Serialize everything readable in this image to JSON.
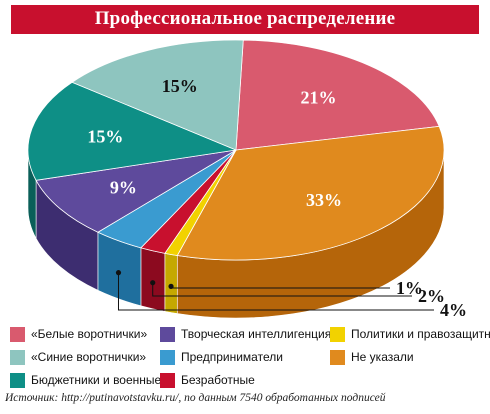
{
  "chart_data": {
    "type": "pie",
    "title": "Профессиональное распределение",
    "series": [
      {
        "name": "«Белые воротнички»",
        "value": 21,
        "label": "21%",
        "color": "#d95a6e",
        "side": "#b0384c"
      },
      {
        "name": "Не указали",
        "value": 33,
        "label": "33%",
        "color": "#e08a1e",
        "side": "#b5650a"
      },
      {
        "name": "Политики и правозащитники",
        "value": 1,
        "label": "1%",
        "color": "#f2d200",
        "side": "#c5a800"
      },
      {
        "name": "Безработные",
        "value": 2,
        "label": "2%",
        "color": "#c8102e",
        "side": "#8c0a1f"
      },
      {
        "name": "Предприниматели",
        "value": 4,
        "label": "4%",
        "color": "#3a9bd0",
        "side": "#1f6f9e"
      },
      {
        "name": "Творческая интеллигенция",
        "value": 9,
        "label": "9%",
        "color": "#5e4a9c",
        "side": "#3d2d70"
      },
      {
        "name": "Бюджетники и военные",
        "value": 15,
        "label": "15%",
        "color": "#0e8f86",
        "side": "#0a5f59"
      },
      {
        "name": "«Синие воротнички»",
        "value": 15,
        "label": "15%",
        "color": "#8ec5bf",
        "side": "#5f9a94"
      }
    ]
  },
  "legend": [
    {
      "label": "«Белые воротнички»",
      "color": "#d95a6e"
    },
    {
      "label": "Творческая интеллигенция",
      "color": "#5e4a9c"
    },
    {
      "label": "Политики и правозащитники",
      "color": "#f2d200"
    },
    {
      "label": "«Синие воротнички»",
      "color": "#8ec5bf"
    },
    {
      "label": "Предприниматели",
      "color": "#3a9bd0"
    },
    {
      "label": "Не указали",
      "color": "#e08a1e"
    },
    {
      "label": "Бюджетники и военные",
      "color": "#0e8f86"
    },
    {
      "label": "Безработные",
      "color": "#c8102e"
    }
  ],
  "source": "Источник: http://putinavotstavku.ru/, по данным 7540 обработанных подписей"
}
